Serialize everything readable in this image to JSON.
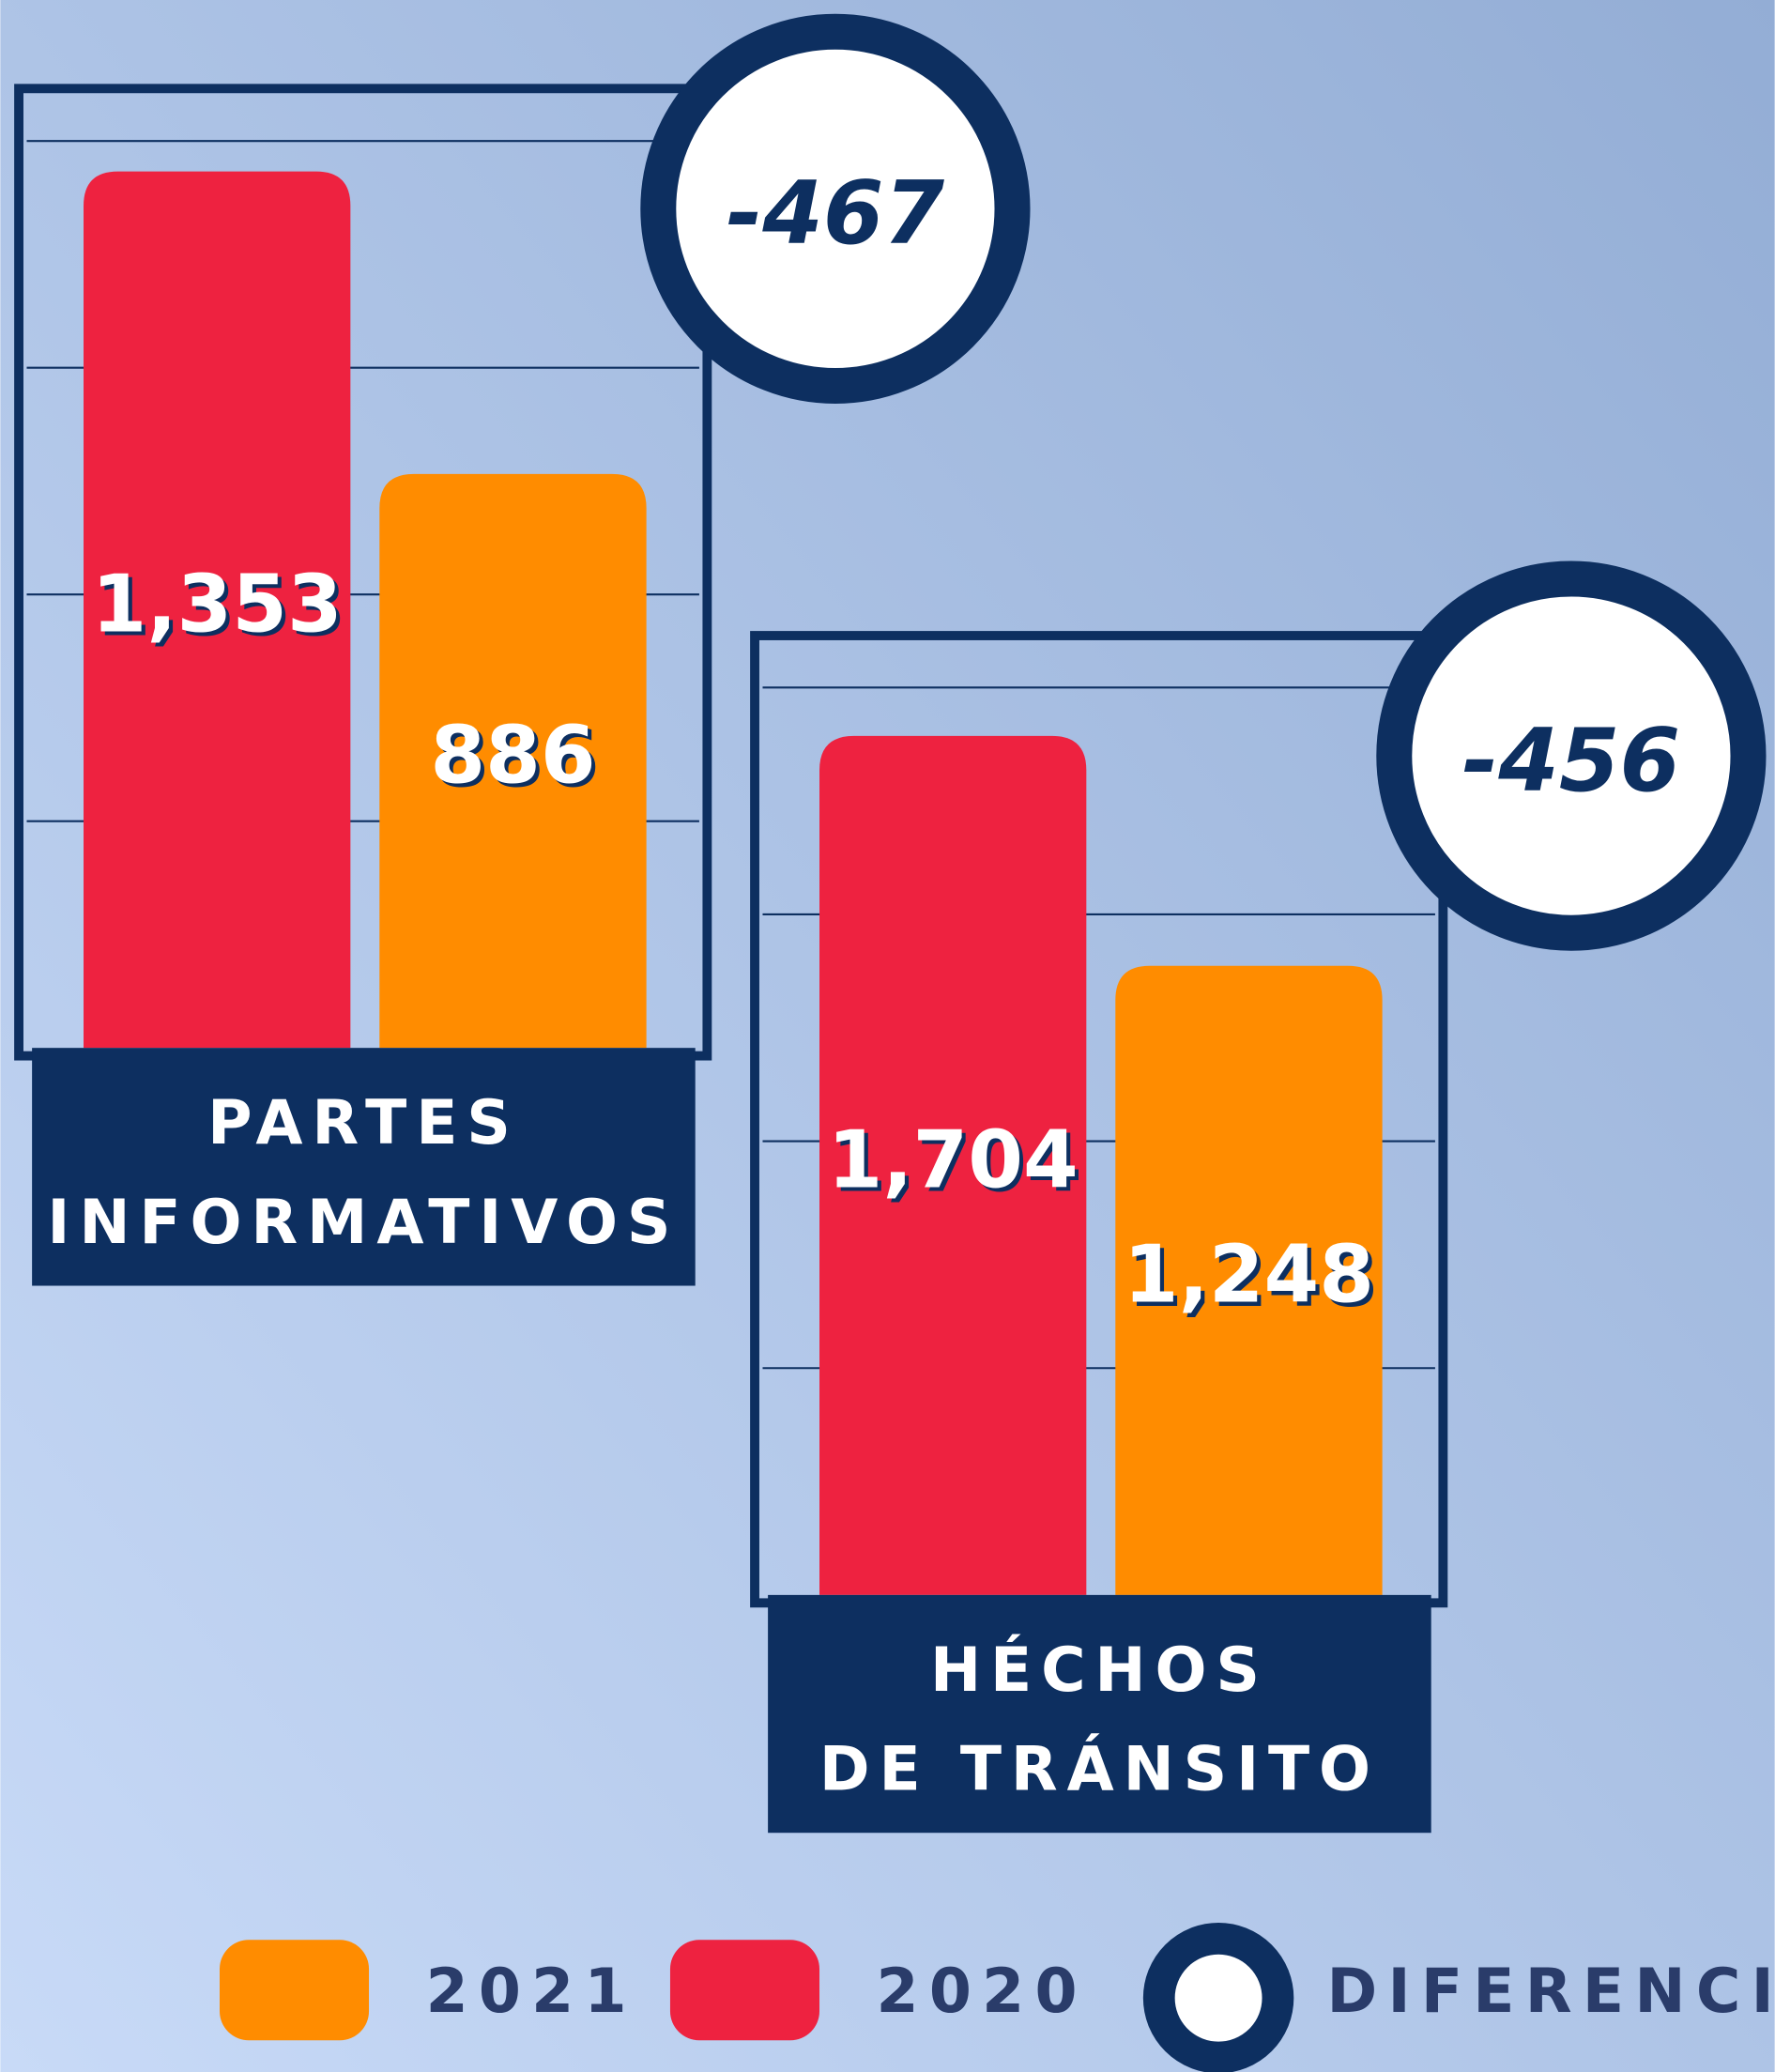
{
  "chart_data": [
    {
      "type": "bar",
      "title": [
        "PARTES",
        "INFORMATIVOS"
      ],
      "categories": [
        "2020",
        "2021"
      ],
      "values": [
        1353,
        886
      ],
      "value_labels": [
        "1,353",
        "886"
      ],
      "colors": [
        "#ee2240",
        "#ff8c00"
      ],
      "difference": -467,
      "ylim": [
        0,
        1481
      ],
      "yticks": [
        350,
        700,
        1050,
        1400
      ],
      "grid": true
    },
    {
      "type": "bar",
      "title": [
        "HÉCHOS",
        "DE TRÁNSITO"
      ],
      "categories": [
        "2020",
        "2021"
      ],
      "values": [
        1704,
        1248
      ],
      "value_labels": [
        "1,704",
        "1,248"
      ],
      "colors": [
        "#ee2240",
        "#ff8c00"
      ],
      "difference": -456,
      "ylim": [
        0,
        1903
      ],
      "yticks": [
        450,
        900,
        1350,
        1800
      ],
      "grid": true
    }
  ],
  "legend": [
    {
      "name": "2021",
      "color": "#ff8c00"
    },
    {
      "name": "2020",
      "color": "#ee2240"
    },
    {
      "name": "DIFERENCIA",
      "color": "#0d2f60"
    }
  ]
}
